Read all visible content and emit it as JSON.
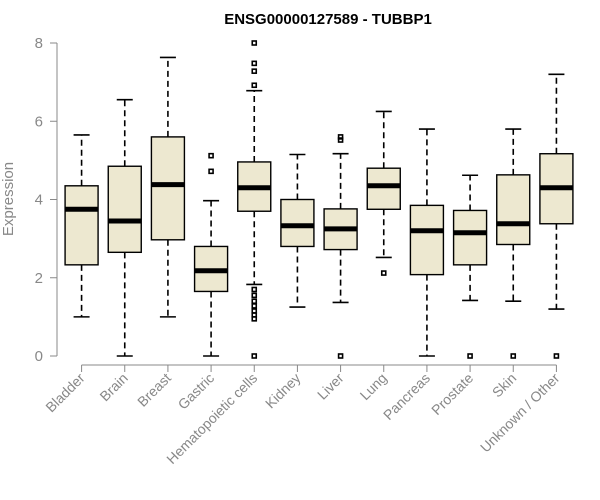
{
  "chart_data": {
    "type": "boxplot",
    "title": "ENSG00000127589 - TUBBP1",
    "xlabel": "",
    "ylabel": "Expression",
    "ylim": [
      0,
      8
    ],
    "yticks": [
      0,
      2,
      4,
      6,
      8
    ],
    "categories": [
      "Bladder",
      "Brain",
      "Breast",
      "Gastric",
      "Hematopoietic cells",
      "Kidney",
      "Liver",
      "Lung",
      "Pancreas",
      "Prostate",
      "Skin",
      "Unknown / Other"
    ],
    "boxes": [
      {
        "name": "Bladder",
        "min": 1.0,
        "q1": 2.33,
        "median": 3.75,
        "q3": 4.35,
        "max": 5.65,
        "outliers": []
      },
      {
        "name": "Brain",
        "min": 0.0,
        "q1": 2.65,
        "median": 3.45,
        "q3": 4.85,
        "max": 6.55,
        "outliers": []
      },
      {
        "name": "Breast",
        "min": 1.0,
        "q1": 2.97,
        "median": 4.38,
        "q3": 5.6,
        "max": 7.63,
        "outliers": []
      },
      {
        "name": "Gastric",
        "min": 0.0,
        "q1": 1.65,
        "median": 2.18,
        "q3": 2.8,
        "max": 3.97,
        "outliers": [
          4.72,
          5.12
        ]
      },
      {
        "name": "Hematopoietic cells",
        "min": 1.83,
        "q1": 3.7,
        "median": 4.3,
        "q3": 4.96,
        "max": 6.78,
        "outliers": [
          0.0,
          0.95,
          1.05,
          1.15,
          1.28,
          1.4,
          1.55,
          1.7,
          6.92,
          7.28,
          7.48,
          8.0
        ]
      },
      {
        "name": "Kidney",
        "min": 1.25,
        "q1": 2.8,
        "median": 3.33,
        "q3": 4.0,
        "max": 5.15,
        "outliers": []
      },
      {
        "name": "Liver",
        "min": 1.37,
        "q1": 2.72,
        "median": 3.25,
        "q3": 3.76,
        "max": 5.17,
        "outliers": [
          0.0,
          5.52,
          5.6
        ]
      },
      {
        "name": "Lung",
        "min": 2.52,
        "q1": 3.75,
        "median": 4.35,
        "q3": 4.8,
        "max": 6.25,
        "outliers": [
          2.12
        ]
      },
      {
        "name": "Pancreas",
        "min": 0.0,
        "q1": 2.08,
        "median": 3.2,
        "q3": 3.85,
        "max": 5.8,
        "outliers": []
      },
      {
        "name": "Prostate",
        "min": 1.42,
        "q1": 2.33,
        "median": 3.15,
        "q3": 3.72,
        "max": 4.62,
        "outliers": [
          0.0
        ]
      },
      {
        "name": "Skin",
        "min": 1.4,
        "q1": 2.85,
        "median": 3.38,
        "q3": 4.63,
        "max": 5.8,
        "outliers": [
          0.0
        ]
      },
      {
        "name": "Unknown / Other",
        "min": 1.2,
        "q1": 3.38,
        "median": 4.3,
        "q3": 5.17,
        "max": 7.2,
        "outliers": [
          0.0
        ]
      }
    ]
  }
}
